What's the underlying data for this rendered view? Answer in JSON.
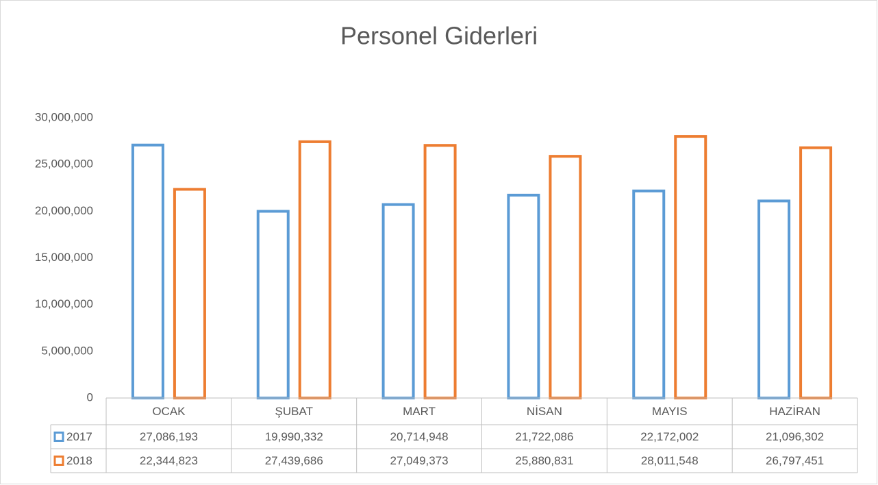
{
  "chart_data": {
    "type": "bar",
    "title": "Personel Giderleri",
    "categories": [
      "OCAK",
      "ŞUBAT",
      "MART",
      "NİSAN",
      "MAYIS",
      "HAZİRAN"
    ],
    "series": [
      {
        "name": "2017",
        "color": "#5b9bd5",
        "values": [
          27086193,
          19990332,
          20714948,
          21722086,
          22172002,
          21096302
        ],
        "value_labels": [
          "27,086,193",
          "19,990,332",
          "20,714,948",
          "21,722,086",
          "22,172,002",
          "21,096,302"
        ]
      },
      {
        "name": "2018",
        "color": "#ed7d31",
        "values": [
          22344823,
          27439686,
          27049373,
          25880831,
          28011548,
          26797451
        ],
        "value_labels": [
          "22,344,823",
          "27,439,686",
          "27,049,373",
          "25,880,831",
          "28,011,548",
          "26,797,451"
        ]
      }
    ],
    "ylim": [
      0,
      30000000
    ],
    "yticks": [
      0,
      {
        "value": 5000000,
        "label": "5,000,000"
      },
      {
        "value": 10000000,
        "label": "10,000,000"
      },
      {
        "value": 15000000,
        "label": "15,000,000"
      },
      {
        "value": 20000000,
        "label": "20,000,000"
      },
      {
        "value": 25000000,
        "label": "25,000,000"
      },
      {
        "value": 30000000,
        "label": "30,000,000"
      }
    ],
    "grid": false,
    "legend": "table"
  }
}
